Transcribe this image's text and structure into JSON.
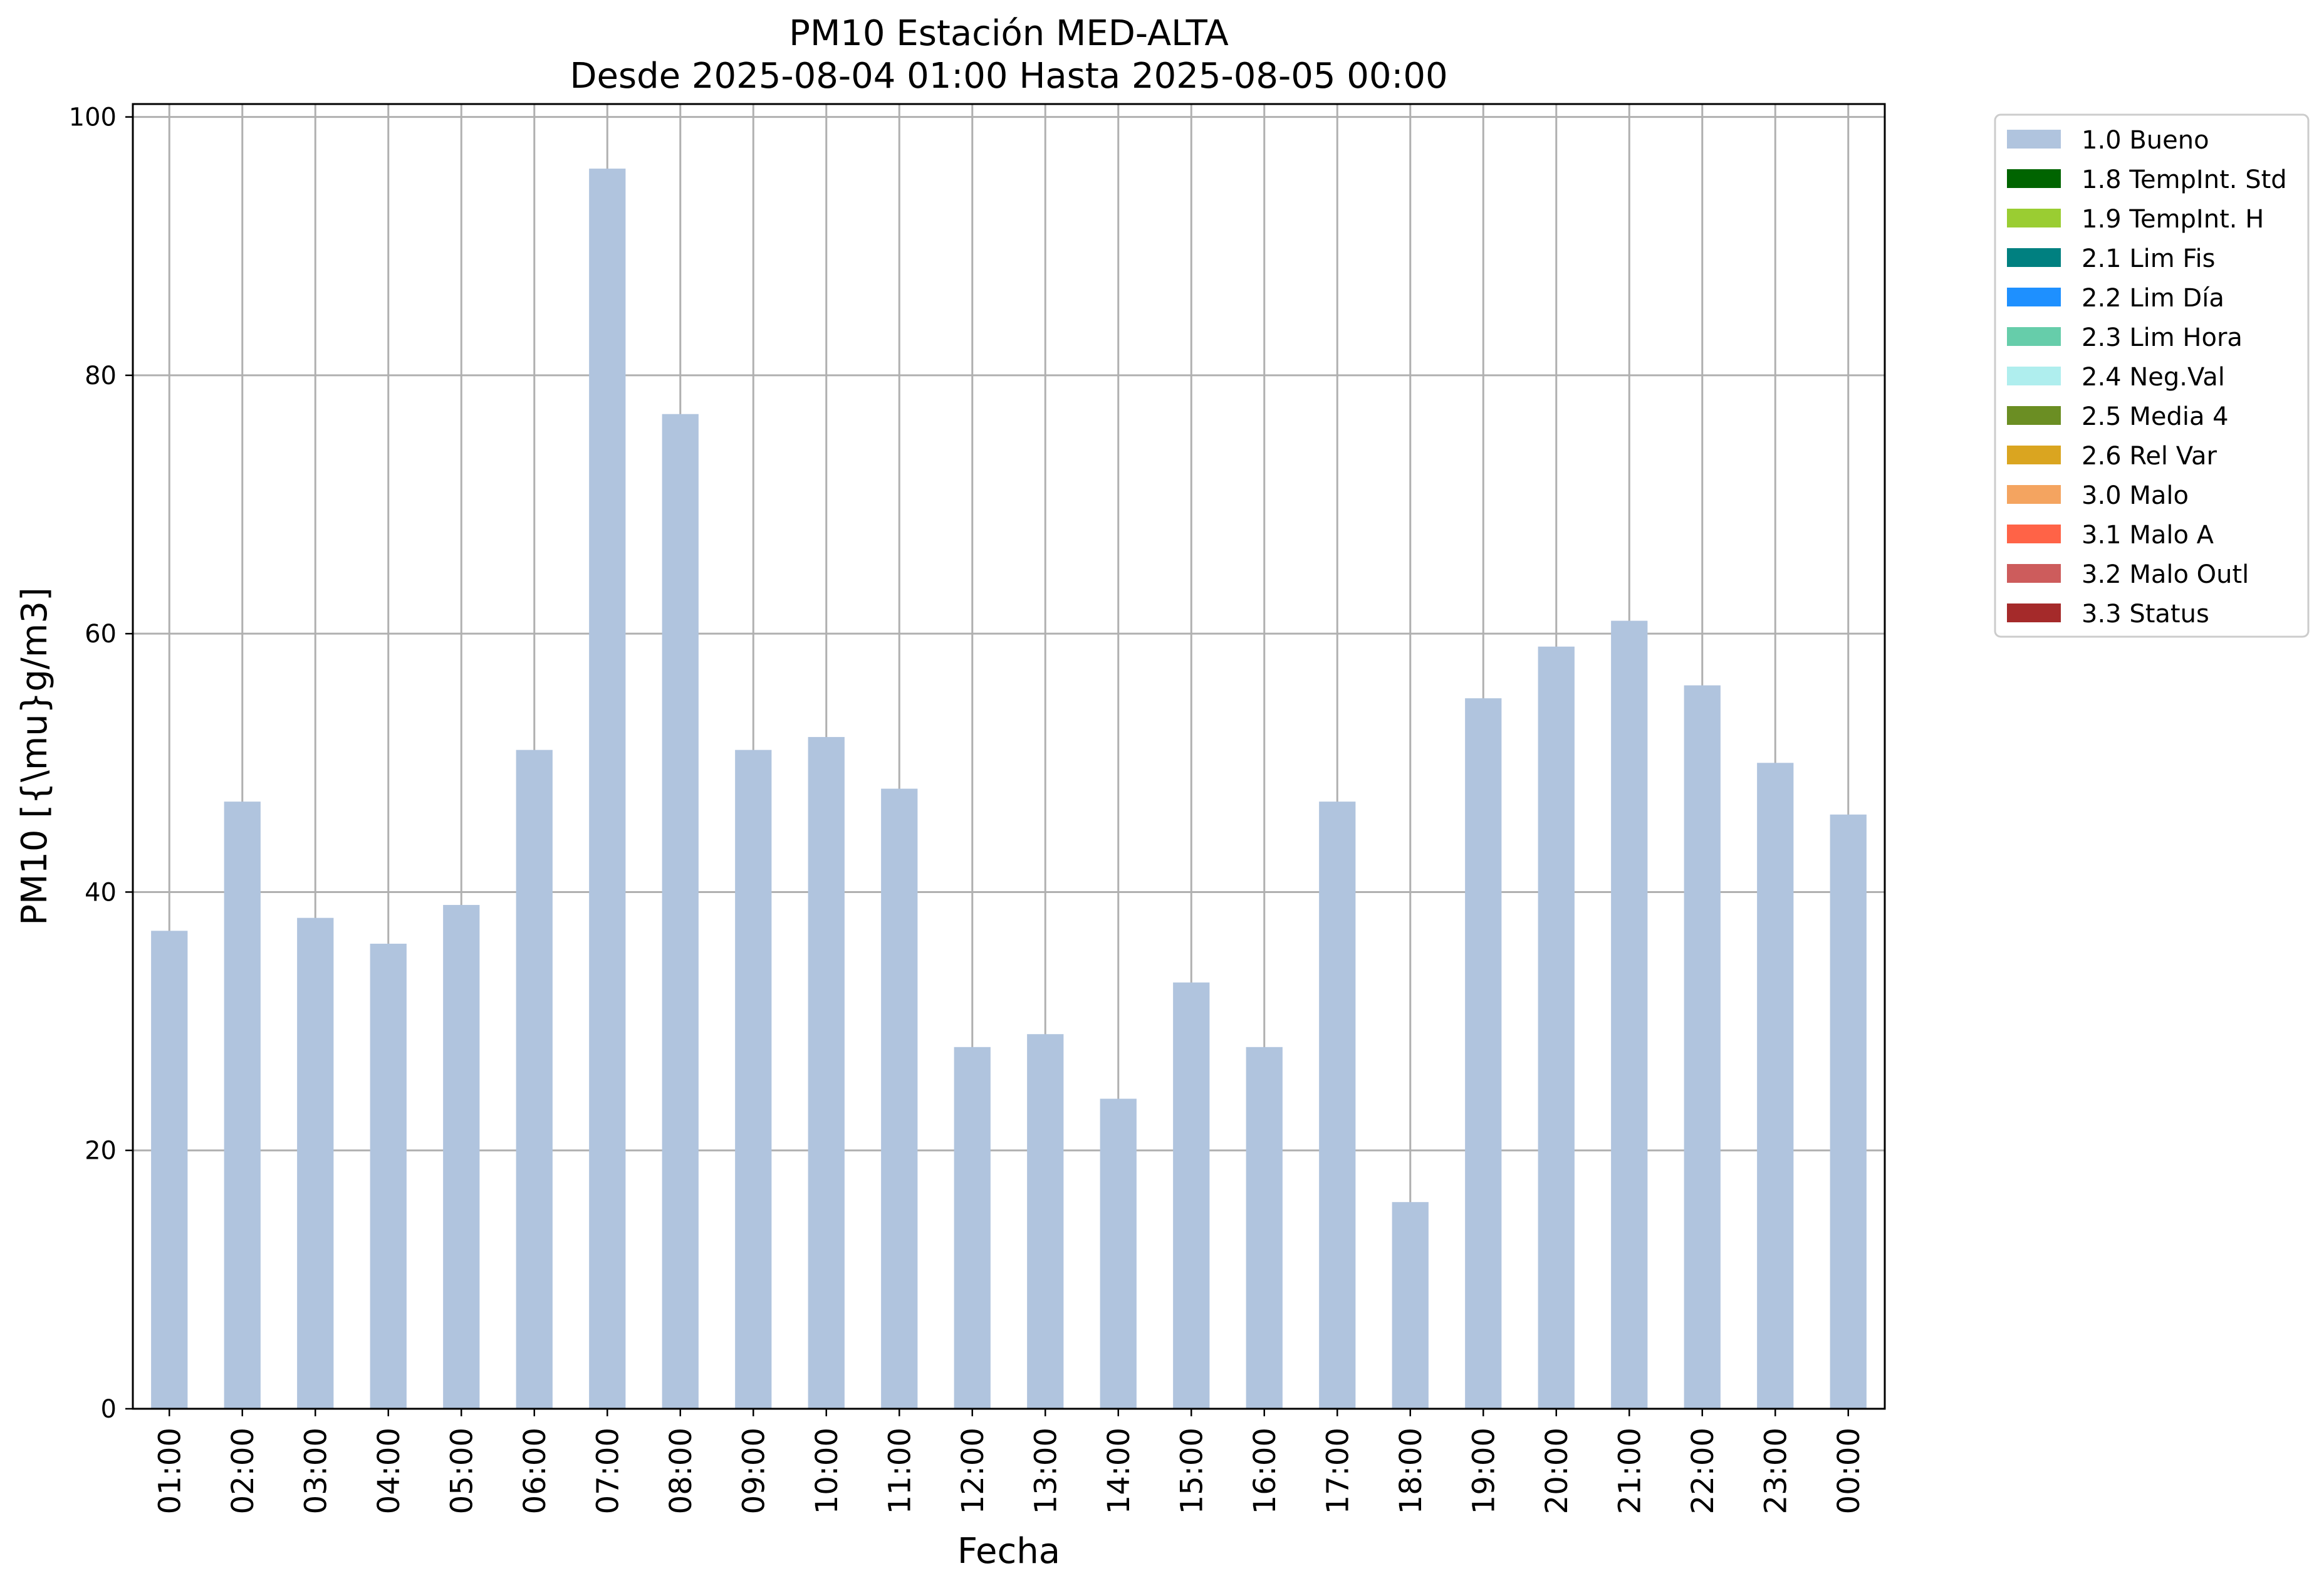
{
  "chart_data": {
    "type": "bar",
    "title": "PM10 Estación MED-ALTA",
    "subtitle": "Desde 2025-08-04 01:00 Hasta 2025-08-05 00:00",
    "xlabel": "Fecha",
    "ylabel": "PM10 [{\\mu}g/m3]",
    "ylim": [
      0,
      101
    ],
    "yticks": [
      0,
      20,
      40,
      60,
      80,
      100
    ],
    "grid": true,
    "legend_position": "outside-right-top",
    "categories": [
      "01:00",
      "02:00",
      "03:00",
      "04:00",
      "05:00",
      "06:00",
      "07:00",
      "08:00",
      "09:00",
      "10:00",
      "11:00",
      "12:00",
      "13:00",
      "14:00",
      "15:00",
      "16:00",
      "17:00",
      "18:00",
      "19:00",
      "20:00",
      "21:00",
      "22:00",
      "23:00",
      "00:00"
    ],
    "series": [
      {
        "name": "1.0 Bueno",
        "color": "#b0c4de",
        "values": [
          37,
          47,
          38,
          36,
          39,
          51,
          96,
          77,
          51,
          52,
          48,
          28,
          29,
          24,
          33,
          28,
          47,
          16,
          55,
          59,
          61,
          56,
          50,
          46
        ]
      }
    ],
    "legend": [
      {
        "label": "1.0 Bueno",
        "color": "#b0c4de"
      },
      {
        "label": "1.8 TempInt. Std",
        "color": "#006400"
      },
      {
        "label": "1.9 TempInt. H",
        "color": "#9acd32"
      },
      {
        "label": "2.1 Lim Fis",
        "color": "#008080"
      },
      {
        "label": "2.2 Lim Día",
        "color": "#1e90ff"
      },
      {
        "label": "2.3 Lim Hora",
        "color": "#66cdaa"
      },
      {
        "label": "2.4 Neg.Val",
        "color": "#afeeee"
      },
      {
        "label": "2.5 Media 4",
        "color": "#6b8e23"
      },
      {
        "label": "2.6 Rel Var",
        "color": "#daa520"
      },
      {
        "label": "3.0 Malo",
        "color": "#f4a460"
      },
      {
        "label": "3.1 Malo A",
        "color": "#ff6347"
      },
      {
        "label": "3.2 Malo Outl",
        "color": "#cd5c5c"
      },
      {
        "label": "3.3 Status",
        "color": "#a52a2a"
      }
    ]
  }
}
